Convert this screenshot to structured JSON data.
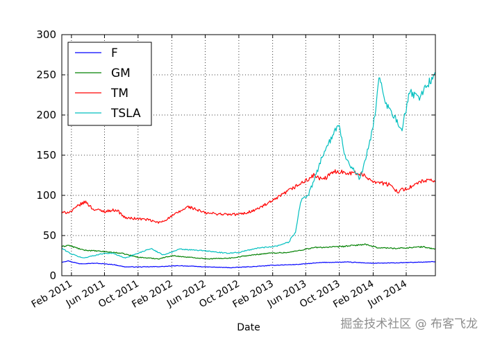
{
  "chart_data": {
    "type": "line",
    "title": "",
    "xlabel": "Date",
    "ylabel": "",
    "ylim": [
      0,
      300
    ],
    "xlim": [
      "2010-12-28",
      "2014-09-15"
    ],
    "yticks": [
      0,
      50,
      100,
      150,
      200,
      250,
      300
    ],
    "xticks": [
      {
        "date": "2011-02-01",
        "label": "Feb 2011"
      },
      {
        "date": "2011-06-01",
        "label": "Jun 2011"
      },
      {
        "date": "2011-10-01",
        "label": "Oct 2011"
      },
      {
        "date": "2012-02-01",
        "label": "Feb 2012"
      },
      {
        "date": "2012-06-01",
        "label": "Jun 2012"
      },
      {
        "date": "2012-10-01",
        "label": "Oct 2012"
      },
      {
        "date": "2013-02-01",
        "label": "Feb 2013"
      },
      {
        "date": "2013-06-01",
        "label": "Jun 2013"
      },
      {
        "date": "2013-10-01",
        "label": "Oct 2013"
      },
      {
        "date": "2014-02-01",
        "label": "Feb 2014"
      },
      {
        "date": "2014-06-01",
        "label": "Jun 2014"
      }
    ],
    "grid": true,
    "legend_position": "top-left",
    "series": [
      {
        "name": "F",
        "color": "#0000ff",
        "points": [
          [
            "2010-12-28",
            17
          ],
          [
            "2011-01-20",
            18.5
          ],
          [
            "2011-03-01",
            15
          ],
          [
            "2011-05-01",
            15.5
          ],
          [
            "2011-07-01",
            14
          ],
          [
            "2011-08-15",
            11
          ],
          [
            "2011-11-01",
            11
          ],
          [
            "2012-01-01",
            11.5
          ],
          [
            "2012-03-01",
            12.5
          ],
          [
            "2012-06-01",
            11
          ],
          [
            "2012-09-01",
            10
          ],
          [
            "2012-12-01",
            11.5
          ],
          [
            "2013-02-01",
            13
          ],
          [
            "2013-05-01",
            14
          ],
          [
            "2013-08-01",
            16.5
          ],
          [
            "2013-11-01",
            17
          ],
          [
            "2014-02-01",
            15.5
          ],
          [
            "2014-05-01",
            16
          ],
          [
            "2014-08-01",
            17
          ],
          [
            "2014-09-15",
            17.5
          ]
        ]
      },
      {
        "name": "GM",
        "color": "#008000",
        "points": [
          [
            "2010-12-28",
            36
          ],
          [
            "2011-01-20",
            38
          ],
          [
            "2011-03-15",
            32
          ],
          [
            "2011-06-01",
            30
          ],
          [
            "2011-08-01",
            28
          ],
          [
            "2011-10-01",
            23
          ],
          [
            "2011-12-15",
            21
          ],
          [
            "2012-02-01",
            25
          ],
          [
            "2012-04-01",
            23
          ],
          [
            "2012-06-15",
            21
          ],
          [
            "2012-09-01",
            22
          ],
          [
            "2012-11-01",
            25
          ],
          [
            "2013-01-15",
            28
          ],
          [
            "2013-04-01",
            29
          ],
          [
            "2013-07-01",
            35
          ],
          [
            "2013-10-01",
            36
          ],
          [
            "2014-01-01",
            39
          ],
          [
            "2014-02-15",
            35
          ],
          [
            "2014-05-01",
            34
          ],
          [
            "2014-08-01",
            36
          ],
          [
            "2014-09-15",
            33
          ]
        ]
      },
      {
        "name": "TM",
        "color": "#ff0000",
        "points": [
          [
            "2010-12-28",
            78
          ],
          [
            "2011-02-01",
            80
          ],
          [
            "2011-03-01",
            88
          ],
          [
            "2011-03-25",
            92
          ],
          [
            "2011-04-20",
            83
          ],
          [
            "2011-06-01",
            80
          ],
          [
            "2011-07-15",
            82
          ],
          [
            "2011-08-15",
            72
          ],
          [
            "2011-11-01",
            70
          ],
          [
            "2011-12-15",
            66
          ],
          [
            "2012-01-01",
            68
          ],
          [
            "2012-03-01",
            80
          ],
          [
            "2012-04-01",
            86
          ],
          [
            "2012-06-01",
            78
          ],
          [
            "2012-09-01",
            76
          ],
          [
            "2012-10-15",
            77
          ],
          [
            "2012-12-01",
            82
          ],
          [
            "2013-02-01",
            93
          ],
          [
            "2013-04-01",
            106
          ],
          [
            "2013-05-15",
            115
          ],
          [
            "2013-06-01",
            118
          ],
          [
            "2013-07-01",
            125
          ],
          [
            "2013-08-01",
            119
          ],
          [
            "2013-09-15",
            130
          ],
          [
            "2013-12-15",
            127
          ],
          [
            "2014-02-01",
            118
          ],
          [
            "2014-04-01",
            113
          ],
          [
            "2014-05-01",
            105
          ],
          [
            "2014-06-15",
            110
          ],
          [
            "2014-08-01",
            118
          ],
          [
            "2014-09-15",
            118
          ]
        ]
      },
      {
        "name": "TSLA",
        "color": "#00bfbf",
        "points": [
          [
            "2010-12-28",
            34
          ],
          [
            "2011-02-01",
            27
          ],
          [
            "2011-03-15",
            22
          ],
          [
            "2011-06-01",
            28
          ],
          [
            "2011-07-01",
            28
          ],
          [
            "2011-08-15",
            22
          ],
          [
            "2011-10-01",
            28
          ],
          [
            "2011-11-15",
            34
          ],
          [
            "2012-01-01",
            26
          ],
          [
            "2012-03-01",
            33
          ],
          [
            "2012-06-01",
            31
          ],
          [
            "2012-08-15",
            28
          ],
          [
            "2012-10-01",
            29
          ],
          [
            "2012-12-01",
            34
          ],
          [
            "2013-02-15",
            37
          ],
          [
            "2013-04-01",
            42
          ],
          [
            "2013-04-25",
            55
          ],
          [
            "2013-05-15",
            95
          ],
          [
            "2013-06-10",
            100
          ],
          [
            "2013-07-01",
            118
          ],
          [
            "2013-08-01",
            150
          ],
          [
            "2013-09-01",
            170
          ],
          [
            "2013-10-01",
            190
          ],
          [
            "2013-10-20",
            150
          ],
          [
            "2013-11-15",
            135
          ],
          [
            "2013-12-15",
            120
          ],
          [
            "2014-01-15",
            160
          ],
          [
            "2014-02-01",
            185
          ],
          [
            "2014-02-25",
            250
          ],
          [
            "2014-03-15",
            215
          ],
          [
            "2014-04-15",
            200
          ],
          [
            "2014-05-15",
            180
          ],
          [
            "2014-06-15",
            230
          ],
          [
            "2014-07-15",
            220
          ],
          [
            "2014-08-10",
            235
          ],
          [
            "2014-09-15",
            250
          ]
        ]
      }
    ]
  },
  "watermark": "掘金技术社区 @ 布客飞龙"
}
